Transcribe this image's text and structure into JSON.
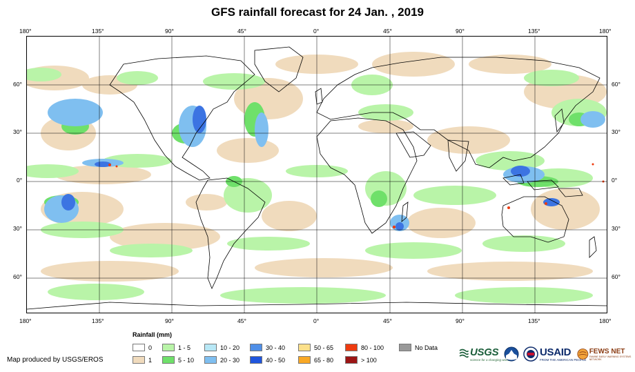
{
  "title": "GFS rainfall forecast for 24 Jan. , 2019",
  "lon_labels": [
    "180°",
    "135°",
    "90°",
    "45°",
    "0°",
    "45°",
    "90°",
    "135°",
    "180°"
  ],
  "lat_labels": [
    "60°",
    "30°",
    "0°",
    "30°",
    "60°"
  ],
  "legend": {
    "title": "Rainfall (mm)",
    "items": [
      {
        "label": "0",
        "color": "#ffffff"
      },
      {
        "label": "1",
        "color": "#f0dbbd"
      },
      {
        "label": "1 - 5",
        "color": "#b9f4a8"
      },
      {
        "label": "5 - 10",
        "color": "#6fe06a"
      },
      {
        "label": "10 - 20",
        "color": "#b8e8f6"
      },
      {
        "label": "20 - 30",
        "color": "#7fbff0"
      },
      {
        "label": "30 - 40",
        "color": "#4f8fe8"
      },
      {
        "label": "40 - 50",
        "color": "#1f55dd"
      },
      {
        "label": "50 - 65",
        "color": "#fce08a"
      },
      {
        "label": "65 - 80",
        "color": "#f9a825"
      },
      {
        "label": "80 - 100",
        "color": "#ee3b0f"
      },
      {
        "label": "> 100",
        "color": "#9c1515"
      },
      {
        "label": "No Data",
        "color": "#999999"
      }
    ]
  },
  "credit": "Map produced by USGS/EROS",
  "logos": {
    "usgs": "USGS",
    "usgs_sub": "science for a changing world",
    "usaid": "USAID",
    "usaid_sub": "FROM THE AMERICAN PEOPLE",
    "fews": "FEWS NET",
    "fews_sub": "FAMINE EARLY WARNING SYSTEMS NETWORK"
  }
}
